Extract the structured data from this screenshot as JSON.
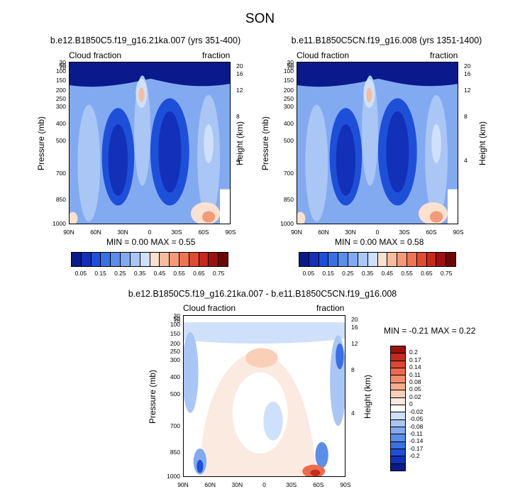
{
  "page": {
    "season_title": "SON"
  },
  "chart_data": [
    {
      "type": "contour",
      "title": "b.e12.B1850C5.f19_g16.21ka.007 (yrs 351-400)",
      "left_subtitle": "Cloud fraction",
      "right_subtitle": "fraction",
      "ylabel": "Pressure (mb)",
      "y2label": "Height (km)",
      "x_ticks": [
        "90N",
        "60N",
        "30N",
        "0",
        "30S",
        "60S",
        "90S"
      ],
      "pressure_ticks": [
        "30",
        "50",
        "70",
        "100",
        "150",
        "200",
        "250",
        "300",
        "400",
        "500",
        "700",
        "850",
        "1000"
      ],
      "height_ticks": [
        "20",
        "16",
        "12",
        "8",
        "4"
      ],
      "stats_text": "MIN =   0.00   MAX =   0.55",
      "min": 0.0,
      "max": 0.55,
      "colorbar": {
        "labels": [
          "0.05",
          "0.15",
          "0.25",
          "0.35",
          "0.45",
          "0.55",
          "0.65",
          "0.75"
        ],
        "levels": [
          0.05,
          0.1,
          0.15,
          0.2,
          0.25,
          0.3,
          0.35,
          0.4,
          0.45,
          0.5,
          0.55,
          0.6,
          0.65,
          0.7,
          0.75
        ],
        "colors": [
          "#0a1a8c",
          "#1230b8",
          "#1e4fd9",
          "#3a6fe6",
          "#5a8ee8",
          "#82aaf0",
          "#a9c6f5",
          "#cfe0fa",
          "#fbe1cf",
          "#f7bd9e",
          "#f49a78",
          "#ee7553",
          "#e24a32",
          "#c8281c",
          "#9c1010",
          "#6d0707"
        ]
      }
    },
    {
      "type": "contour",
      "title": "b.e11.B1850C5CN.f19_g16.008 (yrs 1351-1400)",
      "left_subtitle": "Cloud fraction",
      "right_subtitle": "fraction",
      "ylabel": "Pressure (mb)",
      "y2label": "Height (km)",
      "x_ticks": [
        "90N",
        "60N",
        "30N",
        "0",
        "30S",
        "60S",
        "90S"
      ],
      "pressure_ticks": [
        "30",
        "50",
        "70",
        "100",
        "150",
        "200",
        "250",
        "300",
        "400",
        "500",
        "700",
        "850",
        "1000"
      ],
      "height_ticks": [
        "20",
        "16",
        "12",
        "8",
        "4"
      ],
      "stats_text": "MIN =   0.00   MAX =   0.58",
      "min": 0.0,
      "max": 0.58,
      "colorbar": {
        "labels": [
          "0.05",
          "0.15",
          "0.25",
          "0.35",
          "0.45",
          "0.55",
          "0.65",
          "0.75"
        ],
        "levels": [
          0.05,
          0.1,
          0.15,
          0.2,
          0.25,
          0.3,
          0.35,
          0.4,
          0.45,
          0.5,
          0.55,
          0.6,
          0.65,
          0.7,
          0.75
        ],
        "colors": [
          "#0a1a8c",
          "#1230b8",
          "#1e4fd9",
          "#3a6fe6",
          "#5a8ee8",
          "#82aaf0",
          "#a9c6f5",
          "#cfe0fa",
          "#fbe1cf",
          "#f7bd9e",
          "#f49a78",
          "#ee7553",
          "#e24a32",
          "#c8281c",
          "#9c1010",
          "#6d0707"
        ]
      }
    },
    {
      "type": "contour",
      "title": "b.e12.B1850C5.f19_g16.21ka.007 - b.e11.B1850C5CN.f19_g16.008",
      "left_subtitle": "Cloud fraction",
      "right_subtitle": "fraction",
      "ylabel": "Pressure (mb)",
      "y2label": "Height (km)",
      "x_ticks": [
        "90N",
        "60N",
        "30N",
        "0",
        "30S",
        "60S",
        "90S"
      ],
      "pressure_ticks": [
        "30",
        "50",
        "70",
        "100",
        "150",
        "200",
        "250",
        "300",
        "400",
        "500",
        "700",
        "850",
        "1000"
      ],
      "height_ticks": [
        "20",
        "16",
        "12",
        "8",
        "4"
      ],
      "stats_text": "MIN =  -0.21   MAX =   0.22",
      "min": -0.21,
      "max": 0.22,
      "colorbar": {
        "labels": [
          "0.2",
          "0.17",
          "0.14",
          "0.11",
          "0.08",
          "0.05",
          "0.02",
          "0",
          "-0.02",
          "-0.05",
          "-0.08",
          "-0.11",
          "-0.14",
          "-0.17",
          "-0.2"
        ],
        "colors": [
          "#9c1010",
          "#c42a1e",
          "#e0452f",
          "#ee6a4c",
          "#f48c6c",
          "#f6ad8e",
          "#f9cfb8",
          "#fbeadf",
          "#ffffff",
          "#cfe0fa",
          "#a9c6f5",
          "#82aaf0",
          "#5a8ee8",
          "#3a6fe6",
          "#1e4fd9",
          "#1230b8",
          "#0a1a8c"
        ]
      }
    }
  ]
}
